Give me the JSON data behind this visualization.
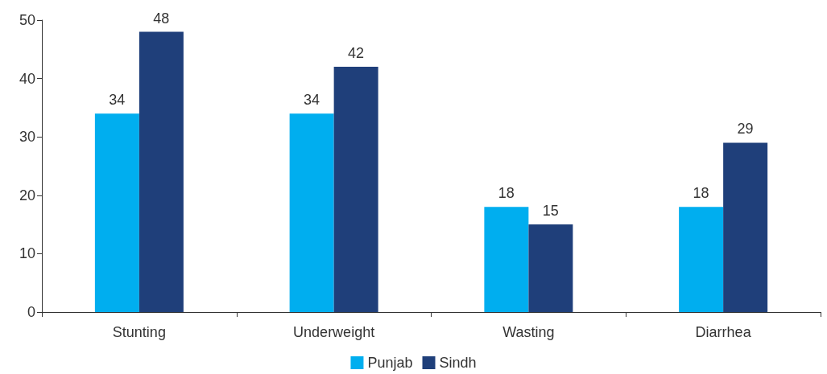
{
  "chart_data": {
    "type": "bar",
    "categories": [
      "Stunting",
      "Underweight",
      "Wasting",
      "Diarrhea"
    ],
    "series": [
      {
        "name": "Punjab",
        "color": "#00aeef",
        "values": [
          34,
          34,
          18,
          18
        ]
      },
      {
        "name": "Sindh",
        "color": "#1f3f7a",
        "values": [
          48,
          42,
          15,
          29
        ]
      }
    ],
    "ylim": [
      0,
      50
    ],
    "yticks": [
      0,
      10,
      20,
      30,
      40,
      50
    ],
    "grid": false,
    "legend": "bottom",
    "data_labels": true
  }
}
